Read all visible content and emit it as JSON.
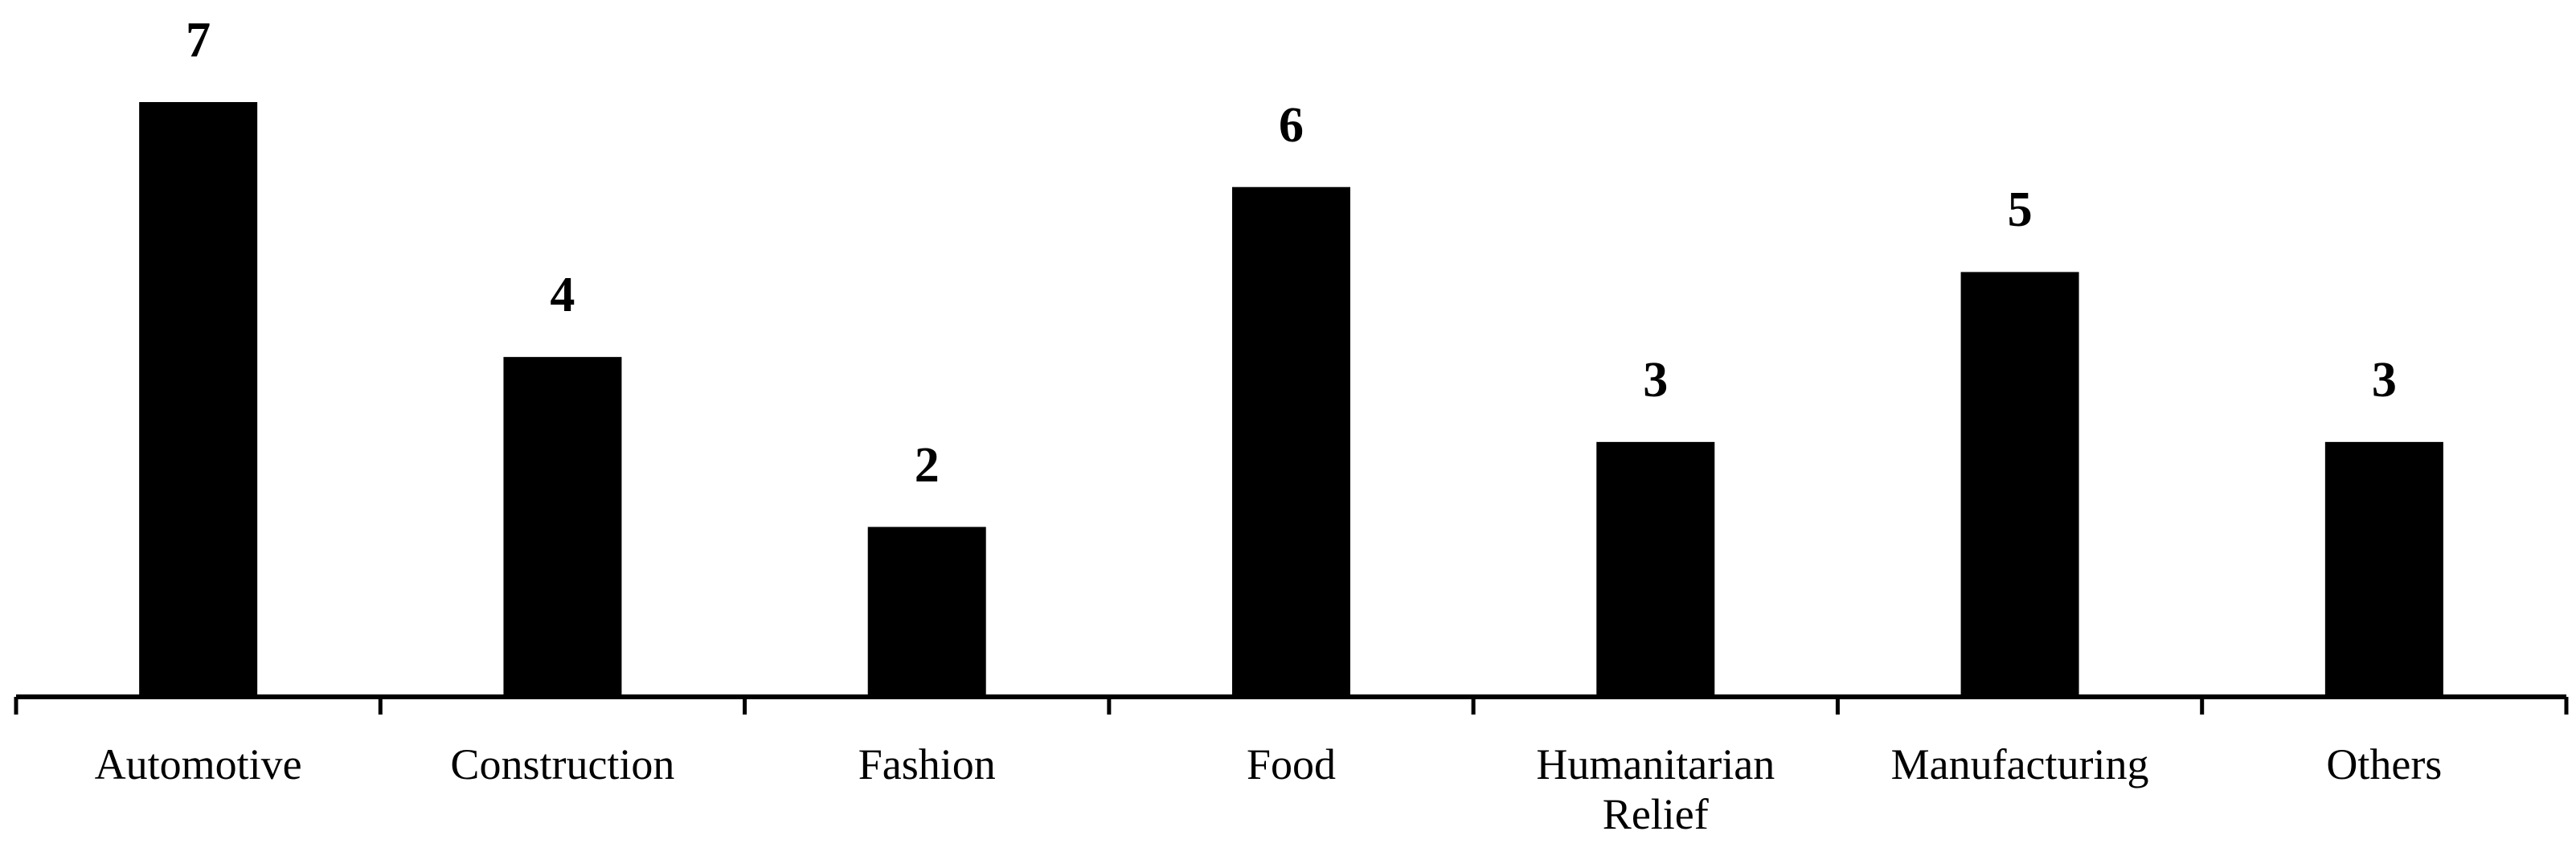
{
  "chart_data": {
    "type": "bar",
    "categories": [
      "Automotive",
      "Construction",
      "Fashion",
      "Food",
      "Humanitarian Relief",
      "Manufacturing",
      "Others"
    ],
    "values": [
      7,
      4,
      2,
      6,
      3,
      5,
      3
    ],
    "color": "#000000",
    "ylim": [
      0,
      7
    ]
  }
}
